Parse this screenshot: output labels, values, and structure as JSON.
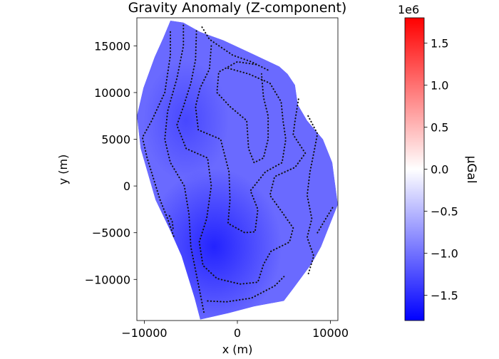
{
  "chart_data": {
    "type": "heatmap",
    "title": "Gravity Anomaly (Z-component)",
    "xlabel": "x (m)",
    "ylabel": "y (m)",
    "xlim": [
      -10800,
      10800
    ],
    "ylim": [
      -14400,
      18000
    ],
    "xticks": [
      {
        "value": -10000,
        "label": "−10000"
      },
      {
        "value": 0,
        "label": "0"
      },
      {
        "value": 10000,
        "label": "10000"
      }
    ],
    "yticks": [
      {
        "value": 15000,
        "label": "15000"
      },
      {
        "value": 10000,
        "label": "10000"
      },
      {
        "value": 5000,
        "label": "5000"
      },
      {
        "value": 0,
        "label": "0"
      },
      {
        "value": -5000,
        "label": "−5000"
      },
      {
        "value": -10000,
        "label": "−10000"
      }
    ],
    "colorbar": {
      "label": "μGal",
      "offset_text": "1e6",
      "vmin": -1.8,
      "vmax": 1.8,
      "cmap": [
        "#0000ff",
        "#ffffff",
        "#ff0000"
      ],
      "ticks": [
        {
          "value": 1.5,
          "label": "1.5"
        },
        {
          "value": 1.0,
          "label": "1.0"
        },
        {
          "value": 0.5,
          "label": "0.5"
        },
        {
          "value": 0.0,
          "label": "0.0"
        },
        {
          "value": -0.5,
          "label": "−0.5"
        },
        {
          "value": -1.0,
          "label": "−1.0"
        },
        {
          "value": -1.5,
          "label": "−1.5"
        }
      ]
    },
    "field": {
      "mean_value": -1.05,
      "minimum": {
        "x": -2500,
        "y": -6500,
        "value": -1.55
      },
      "secondary_low": {
        "x": -5500,
        "y": 7000,
        "value": -1.3
      }
    },
    "outline": [
      [
        -7200,
        17700
      ],
      [
        -5800,
        17500
      ],
      [
        -4000,
        16500
      ],
      [
        -1500,
        15600
      ],
      [
        1500,
        14200
      ],
      [
        4500,
        12800
      ],
      [
        5400,
        12000
      ],
      [
        6200,
        10800
      ],
      [
        6500,
        8700
      ],
      [
        7500,
        7000
      ],
      [
        9200,
        5000
      ],
      [
        10200,
        2500
      ],
      [
        10800,
        -2000
      ],
      [
        9000,
        -6500
      ],
      [
        8000,
        -8300
      ],
      [
        6000,
        -11000
      ],
      [
        5000,
        -12300
      ],
      [
        1800,
        -12900
      ],
      [
        -900,
        -13600
      ],
      [
        -4000,
        -14300
      ],
      [
        -4600,
        -12000
      ],
      [
        -6000,
        -7500
      ],
      [
        -7200,
        -4800
      ],
      [
        -8800,
        -1500
      ],
      [
        -10400,
        4000
      ],
      [
        -10800,
        7500
      ],
      [
        -10100,
        10500
      ],
      [
        -8900,
        13800
      ],
      [
        -8000,
        15800
      ]
    ],
    "contours": [
      [
        [
          -3800,
          17000
        ],
        [
          -3000,
          15700
        ],
        [
          -500,
          14000
        ],
        [
          1500,
          13300
        ],
        [
          3500,
          12300
        ]
      ],
      [
        [
          -7200,
          16500
        ],
        [
          -7200,
          14000
        ],
        [
          -7800,
          10000
        ],
        [
          -9200,
          7000
        ],
        [
          -10200,
          5200
        ],
        [
          -9700,
          3000
        ],
        [
          -8300,
          -1500
        ],
        [
          -7500,
          -3500
        ],
        [
          -6800,
          -5500
        ]
      ],
      [
        [
          -5800,
          17200
        ],
        [
          -5800,
          15000
        ],
        [
          -6500,
          11500
        ],
        [
          -7500,
          8000
        ],
        [
          -7800,
          5000
        ],
        [
          -7200,
          2500
        ],
        [
          -5700,
          0
        ],
        [
          -5200,
          -3000
        ],
        [
          -5000,
          -6500
        ],
        [
          -4200,
          -10500
        ],
        [
          -3600,
          -13500
        ]
      ],
      [
        [
          -4400,
          16600
        ],
        [
          -4500,
          13500
        ],
        [
          -5000,
          11000
        ],
        [
          -5800,
          8500
        ],
        [
          -6500,
          6500
        ],
        [
          -5500,
          4000
        ],
        [
          -3200,
          3000
        ],
        [
          -2800,
          0
        ],
        [
          -3300,
          -3500
        ],
        [
          -4100,
          -6000
        ],
        [
          -3700,
          -8500
        ],
        [
          -2200,
          -9900
        ],
        [
          300,
          -10500
        ],
        [
          2200,
          -10300
        ],
        [
          2800,
          -8400
        ],
        [
          3600,
          -7000
        ],
        [
          5600,
          -6000
        ],
        [
          6000,
          -4500
        ],
        [
          4800,
          -2800
        ],
        [
          3500,
          -1000
        ],
        [
          4000,
          1000
        ],
        [
          6200,
          2000
        ],
        [
          7300,
          3500
        ],
        [
          6000,
          5500
        ],
        [
          6200,
          7000
        ],
        [
          6600,
          9500
        ]
      ],
      [
        [
          -2800,
          15000
        ],
        [
          -3000,
          12500
        ],
        [
          -4000,
          10500
        ],
        [
          -4500,
          8500
        ],
        [
          -4200,
          6000
        ],
        [
          -1800,
          5000
        ],
        [
          -900,
          1500
        ],
        [
          -800,
          -1500
        ],
        [
          -1000,
          -4000
        ],
        [
          800,
          -5000
        ],
        [
          1900,
          -4900
        ],
        [
          2200,
          -2500
        ],
        [
          1400,
          -500
        ],
        [
          3000,
          1500
        ],
        [
          4800,
          2500
        ],
        [
          5200,
          5000
        ],
        [
          4900,
          7000
        ],
        [
          4700,
          9000
        ],
        [
          3500,
          11000
        ],
        [
          1200,
          12000
        ],
        [
          -1000,
          12600
        ]
      ],
      [
        [
          2000,
          13000
        ],
        [
          0,
          13300
        ],
        [
          -2000,
          12200
        ],
        [
          -2200,
          10000
        ],
        [
          -800,
          8500
        ],
        [
          1000,
          7000
        ],
        [
          1200,
          4000
        ],
        [
          1800,
          2500
        ],
        [
          2800,
          3000
        ],
        [
          3300,
          5000
        ],
        [
          3300,
          7500
        ],
        [
          2800,
          9500
        ],
        [
          2600,
          12000
        ]
      ],
      [
        [
          7600,
          7500
        ],
        [
          8600,
          5600
        ],
        [
          8300,
          4000
        ],
        [
          7800,
          1500
        ],
        [
          7500,
          -1000
        ],
        [
          8000,
          -3500
        ],
        [
          7500,
          -5500
        ],
        [
          8200,
          -7500
        ],
        [
          7600,
          -9500
        ]
      ],
      [
        [
          8600,
          -5000
        ],
        [
          9500,
          -3500
        ],
        [
          10300,
          -2200
        ]
      ],
      [
        [
          -3200,
          -12300
        ],
        [
          -1200,
          -12400
        ],
        [
          1500,
          -12000
        ],
        [
          4000,
          -10700
        ],
        [
          5000,
          -9700
        ]
      ],
      [
        [
          -7300,
          -3200
        ],
        [
          -7000,
          -3800
        ],
        [
          -6900,
          -4600
        ]
      ]
    ]
  }
}
